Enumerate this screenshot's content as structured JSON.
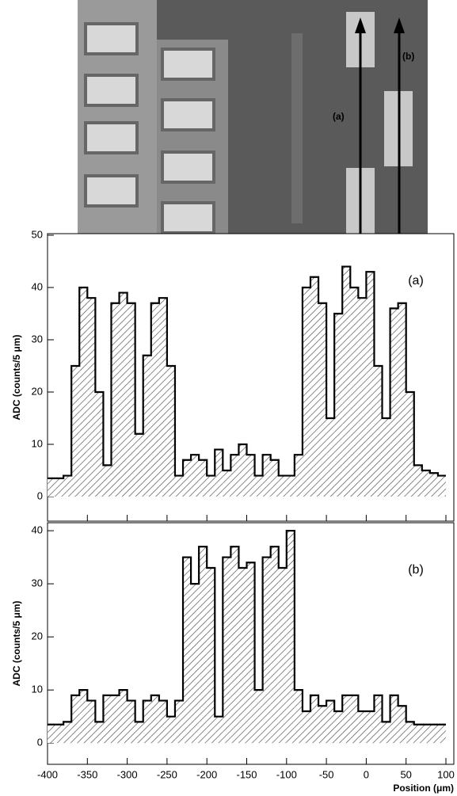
{
  "photo": {
    "labels": [
      "(a)",
      "(b)"
    ]
  },
  "chart_data": [
    {
      "type": "histogram",
      "annotation": "(a)",
      "y_label": "ADC (counts/5 μm)",
      "bins": [
        -400,
        -390,
        -380,
        -370,
        -360,
        -350,
        -340,
        -330,
        -320,
        -310,
        -300,
        -290,
        -280,
        -270,
        -260,
        -250,
        -240,
        -230,
        -220,
        -210,
        -200,
        -190,
        -180,
        -170,
        -160,
        -150,
        -140,
        -130,
        -120,
        -110,
        -100,
        -90,
        -80,
        -70,
        -60,
        -50,
        -40,
        -30,
        -20,
        -10,
        0,
        10,
        20,
        30,
        40,
        50,
        60,
        70,
        80,
        90,
        100
      ],
      "values": [
        3.5,
        3.5,
        4,
        25,
        40,
        38,
        20,
        6,
        37,
        39,
        37,
        12,
        27,
        37,
        38,
        25,
        4,
        7,
        8,
        7,
        4,
        9,
        5,
        8,
        10,
        8,
        4,
        8,
        7,
        4,
        4,
        8,
        40,
        42,
        37,
        15,
        35,
        44,
        40,
        38,
        43,
        25,
        15,
        36,
        37,
        20,
        6,
        5,
        4.5,
        4
      ],
      "xlim": [
        -400,
        100
      ],
      "ylim": [
        -4.7,
        50.3
      ],
      "yticks": [
        0,
        10,
        20,
        30,
        40,
        50
      ]
    },
    {
      "type": "histogram",
      "annotation": "(b)",
      "y_label": "ADC (counts/5 μm)",
      "x_label": "Position (μm)",
      "bins": [
        -400,
        -390,
        -380,
        -370,
        -360,
        -350,
        -340,
        -330,
        -320,
        -310,
        -300,
        -290,
        -280,
        -270,
        -260,
        -250,
        -240,
        -230,
        -220,
        -210,
        -200,
        -190,
        -180,
        -170,
        -160,
        -150,
        -140,
        -130,
        -120,
        -110,
        -100,
        -90,
        -80,
        -70,
        -60,
        -50,
        -40,
        -30,
        -20,
        -10,
        0,
        10,
        20,
        30,
        40,
        50,
        60,
        70,
        80,
        90,
        100
      ],
      "values": [
        3.5,
        3.5,
        4,
        9,
        10,
        8,
        4,
        9,
        9,
        10,
        8,
        4,
        8,
        9,
        8,
        5,
        8,
        35,
        30,
        37,
        33,
        5,
        35,
        37,
        33,
        34,
        10,
        35,
        37,
        33,
        40,
        10,
        6,
        9,
        7,
        8,
        6,
        9,
        9,
        6,
        6,
        9,
        4,
        9,
        7,
        4,
        3.5,
        3.5,
        3.5,
        3.5
      ],
      "xlim": [
        -400,
        100
      ],
      "ylim": [
        -4,
        41.5
      ],
      "yticks": [
        0,
        10,
        20,
        30,
        40
      ],
      "xticks": [
        -400,
        -350,
        -300,
        -250,
        -200,
        -150,
        -100,
        -50,
        0,
        50,
        100
      ]
    }
  ]
}
